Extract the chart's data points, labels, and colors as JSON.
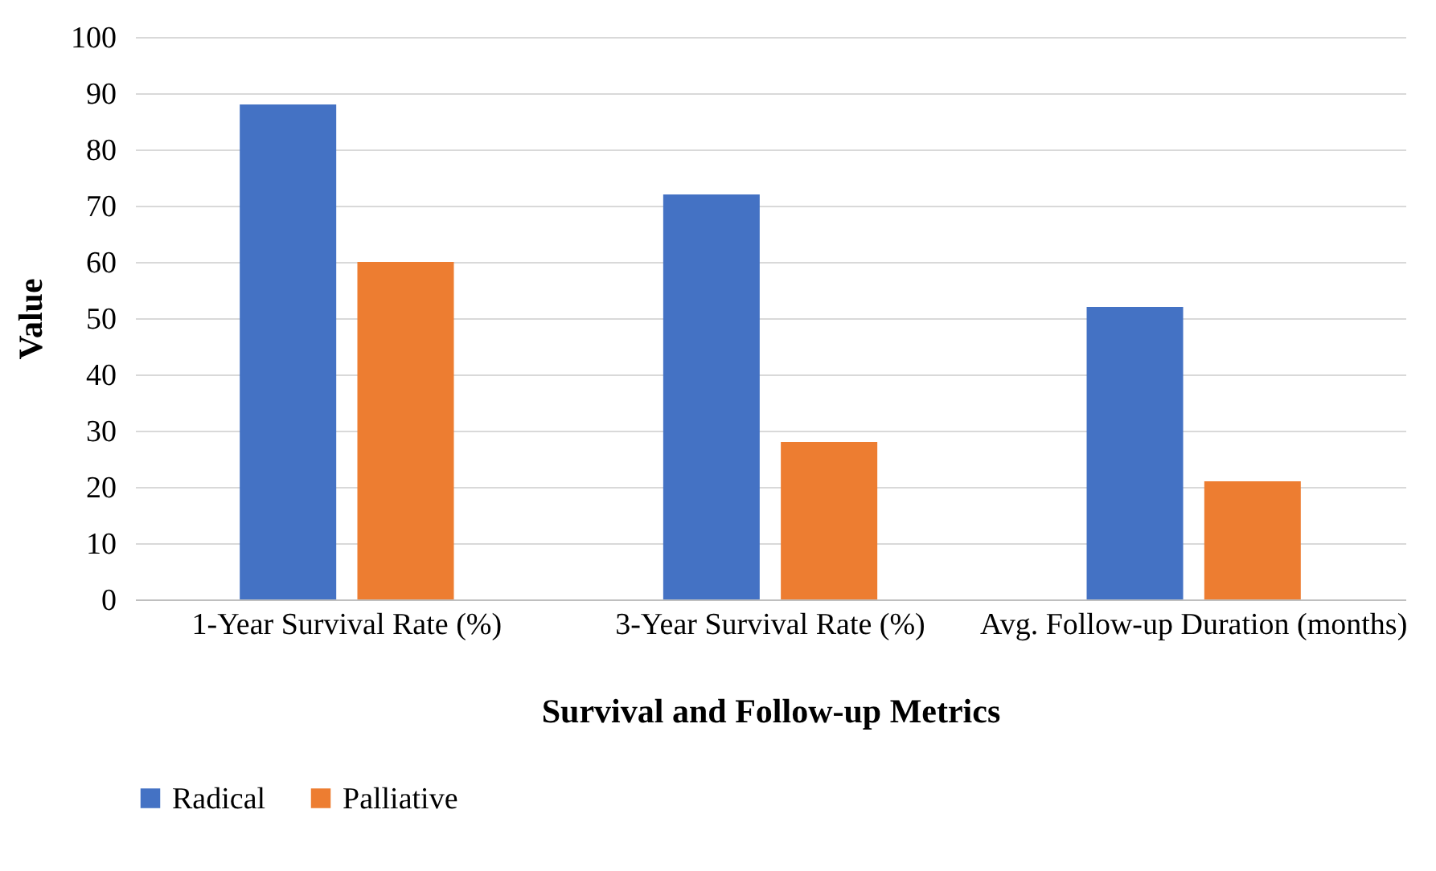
{
  "chart_data": {
    "type": "bar",
    "xlabel": "Survival and Follow-up Metrics",
    "ylabel": "Value",
    "categories": [
      "1-Year Survival Rate (%)",
      "3-Year Survival Rate (%)",
      "Avg. Follow-up Duration (months)"
    ],
    "series": [
      {
        "name": "Radical",
        "color": "#4472c4",
        "values": [
          88,
          72,
          52
        ]
      },
      {
        "name": "Palliative",
        "color": "#ed7d31",
        "values": [
          60,
          28,
          21
        ]
      }
    ],
    "ylim": [
      0,
      100
    ],
    "yticks": [
      0,
      10,
      20,
      30,
      40,
      50,
      60,
      70,
      80,
      90,
      100
    ],
    "grid": "y",
    "legend": "bottom"
  }
}
